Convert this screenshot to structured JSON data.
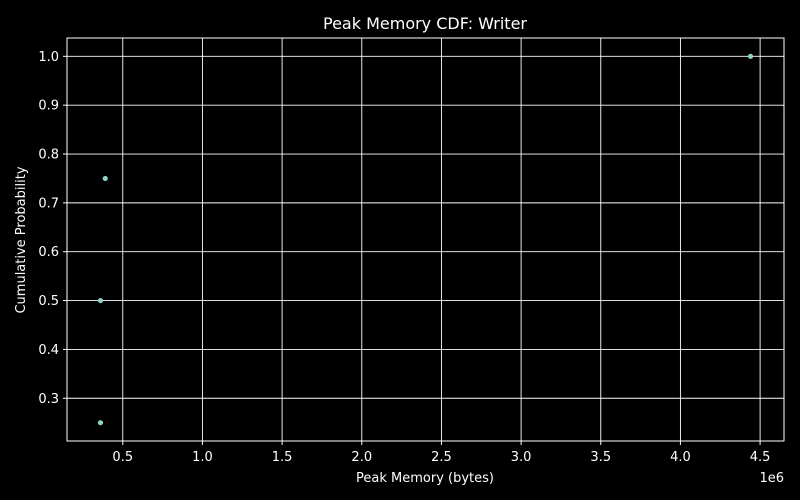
{
  "chart_data": {
    "type": "scatter",
    "title": "Peak Memory CDF: Writer",
    "xlabel": "Peak Memory (bytes)",
    "ylabel": "Cumulative Probability",
    "x_offset_label": "1e6",
    "xlim": [
      0.15,
      4.65
    ],
    "ylim": [
      0.2125,
      1.0375
    ],
    "x_ticks": [
      0.5,
      1.0,
      1.5,
      2.0,
      2.5,
      3.0,
      3.5,
      4.0,
      4.5
    ],
    "x_tick_labels": [
      "0.5",
      "1.0",
      "1.5",
      "2.0",
      "2.5",
      "3.0",
      "3.5",
      "4.0",
      "4.5"
    ],
    "y_ticks": [
      0.3,
      0.4,
      0.5,
      0.6,
      0.7,
      0.8,
      0.9,
      1.0
    ],
    "y_tick_labels": [
      "0.3",
      "0.4",
      "0.5",
      "0.6",
      "0.7",
      "0.8",
      "0.9",
      "1.0"
    ],
    "grid": true,
    "series": [
      {
        "x": [
          0.36,
          0.36,
          0.39,
          4.44
        ],
        "y": [
          0.25,
          0.5,
          0.75,
          1.0
        ]
      }
    ],
    "colors": {
      "background": "#000000",
      "foreground": "#ffffff",
      "marker": "#8dd3c7"
    }
  }
}
